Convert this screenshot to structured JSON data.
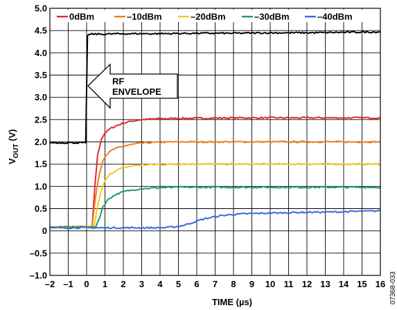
{
  "chart_data": {
    "type": "line",
    "xlabel": "TIME (µs)",
    "ylabel_main": "V",
    "ylabel_sub": "OUT",
    "ylabel_unit": " (V)",
    "xlim": [
      -2,
      16
    ],
    "ylim": [
      -1.0,
      5.0
    ],
    "x_ticks": [
      -2,
      -1,
      0,
      1,
      2,
      3,
      4,
      5,
      6,
      7,
      8,
      9,
      10,
      11,
      12,
      13,
      14,
      15,
      16
    ],
    "x_tick_labels": [
      "–2",
      "–1",
      "0",
      "1",
      "2",
      "3",
      "4",
      "5",
      "6",
      "7",
      "8",
      "9",
      "10",
      "11",
      "12",
      "13",
      "14",
      "15",
      "16"
    ],
    "y_ticks": [
      -1.0,
      -0.5,
      0,
      0.5,
      1.0,
      1.5,
      2.0,
      2.5,
      3.0,
      3.5,
      4.0,
      4.5,
      5.0
    ],
    "y_tick_labels": [
      "–1.0",
      "–0.5",
      "0",
      "0.5",
      "1.0",
      "1.5",
      "2.0",
      "2.5",
      "3.0",
      "3.5",
      "4.0",
      "4.5",
      "5.0"
    ],
    "grid": true,
    "legend_position": "top",
    "series": [
      {
        "name": "0dBm",
        "color": "#e8262a",
        "x": [
          -2,
          0.3,
          0.45,
          0.6,
          0.8,
          1.0,
          1.3,
          1.6,
          2.0,
          2.5,
          3,
          4,
          5,
          6,
          8,
          10,
          12,
          14,
          16
        ],
        "y": [
          0.08,
          0.1,
          1.0,
          1.7,
          2.05,
          2.2,
          2.3,
          2.36,
          2.42,
          2.47,
          2.5,
          2.52,
          2.53,
          2.53,
          2.54,
          2.54,
          2.54,
          2.54,
          2.54
        ]
      },
      {
        "name": "–10dBm",
        "color": "#f07f1e",
        "x": [
          -2,
          0.3,
          0.5,
          0.7,
          0.9,
          1.1,
          1.4,
          1.8,
          2.3,
          3,
          4,
          5,
          6,
          8,
          10,
          12,
          14,
          16
        ],
        "y": [
          0.08,
          0.1,
          0.8,
          1.3,
          1.6,
          1.72,
          1.82,
          1.88,
          1.93,
          1.97,
          1.99,
          2.0,
          2.0,
          2.0,
          2.0,
          2.0,
          2.0,
          2.0
        ]
      },
      {
        "name": "–20dBm",
        "color": "#f7c61e",
        "x": [
          -2,
          0.4,
          0.6,
          0.8,
          1.0,
          1.3,
          1.6,
          2.0,
          2.5,
          3,
          4,
          5,
          6,
          8,
          10,
          12,
          14,
          16
        ],
        "y": [
          0.08,
          0.1,
          0.55,
          0.9,
          1.12,
          1.28,
          1.36,
          1.42,
          1.46,
          1.48,
          1.49,
          1.5,
          1.5,
          1.5,
          1.5,
          1.5,
          1.5,
          1.5
        ]
      },
      {
        "name": "–30dBm",
        "color": "#1e9a6a",
        "x": [
          -2,
          0.5,
          0.7,
          0.9,
          1.2,
          1.6,
          2.0,
          2.5,
          3.0,
          3.5,
          4,
          5,
          6,
          8,
          10,
          12,
          14,
          16
        ],
        "y": [
          0.08,
          0.09,
          0.3,
          0.55,
          0.72,
          0.82,
          0.88,
          0.92,
          0.95,
          0.96,
          0.97,
          0.98,
          0.98,
          0.98,
          0.98,
          0.98,
          0.98,
          0.98
        ]
      },
      {
        "name": "–40dBm",
        "color": "#2f6ce0",
        "x": [
          -2,
          1,
          2,
          3,
          4,
          4.5,
          5,
          5.5,
          6,
          6.5,
          7,
          7.5,
          8,
          9,
          10,
          11,
          12,
          13,
          14,
          15,
          16
        ],
        "y": [
          0.07,
          0.07,
          0.07,
          0.07,
          0.07,
          0.08,
          0.1,
          0.15,
          0.22,
          0.28,
          0.32,
          0.35,
          0.37,
          0.39,
          0.4,
          0.41,
          0.42,
          0.42,
          0.43,
          0.44,
          0.45
        ]
      },
      {
        "name": "",
        "color": "#000000",
        "x": [
          -2,
          -0.05,
          -0.05,
          0.05,
          0.3,
          1,
          2,
          4,
          6,
          8,
          10,
          12,
          14,
          16
        ],
        "y": [
          1.98,
          1.98,
          1.98,
          4.4,
          4.42,
          4.42,
          4.43,
          4.43,
          4.44,
          4.44,
          4.45,
          4.45,
          4.46,
          4.47
        ]
      }
    ],
    "annotation": {
      "line1": "RF",
      "line2": "ENVELOPE"
    },
    "figure_id": "07368-033"
  }
}
